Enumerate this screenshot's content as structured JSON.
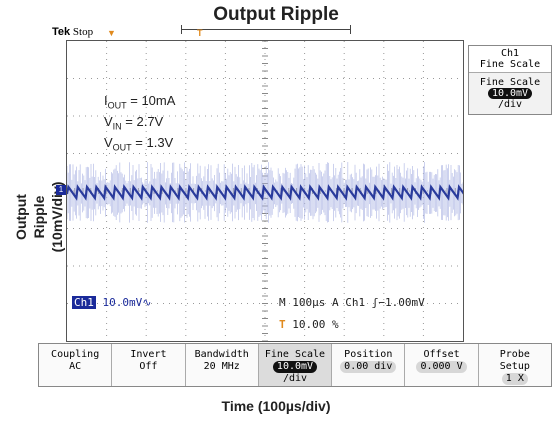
{
  "title": "Output Ripple",
  "brand": "Tek",
  "state": "Stop",
  "y_axis_label": "Output Ripple",
  "y_axis_unit": "(10mV/div)",
  "x_axis_label": "Time (100µs/div)",
  "annotations": {
    "iout": "I",
    "iout_sub": "OUT",
    "iout_val": " = 10mA",
    "vin": "V",
    "vin_sub": "IN",
    "vin_val": " = 2.7V",
    "vout": "V",
    "vout_sub": "OUT",
    "vout_val": " = 1.3V"
  },
  "status": {
    "ch": "Ch1",
    "scale": "10.0mV",
    "timebase": "M 100µs  A  Ch1",
    "trigger": "−1.00mV",
    "trigger_pos": "10.00 %"
  },
  "side_menu": {
    "title": "Ch1",
    "subtitle": "Fine Scale",
    "item_label": "Fine Scale",
    "item_value": "10.0mV",
    "item_unit": "/div"
  },
  "bottom_menu": [
    {
      "l1": "Coupling",
      "l2": "AC"
    },
    {
      "l1": "Invert",
      "l2": "Off"
    },
    {
      "l1": "Bandwidth",
      "l2": "20 MHz"
    },
    {
      "l1": "Fine Scale",
      "l2": "10.0mV",
      "l3": "/div"
    },
    {
      "l1": "Position",
      "l2": "0.00 div"
    },
    {
      "l1": "Offset",
      "l2": "0.000 V"
    },
    {
      "l1": "Probe",
      "l2": "Setup",
      "l3": "1 X"
    }
  ],
  "colors": {
    "trace": "#2a3b9c",
    "trace_light": "#aab3e3",
    "trigger": "#e08a1e"
  }
}
